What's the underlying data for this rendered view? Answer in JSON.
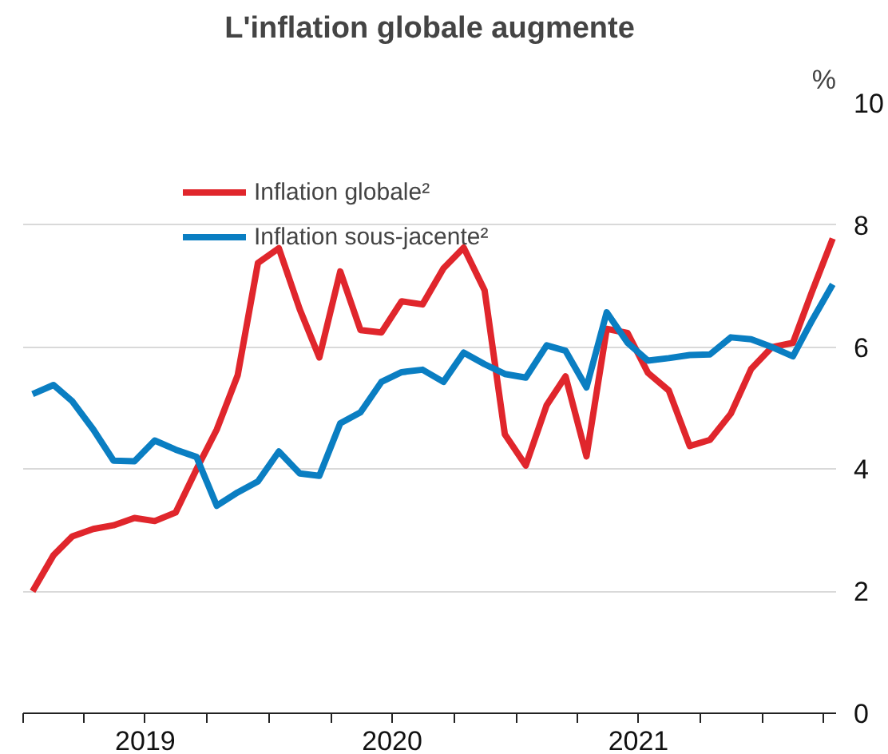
{
  "chart_data": {
    "type": "line",
    "title": "L'inflation globale augmente",
    "ylabel": "%",
    "x": [
      "2019-01-15",
      "2019-02-15",
      "2019-03-15",
      "2019-04-15",
      "2019-05-15",
      "2019-06-15",
      "2019-07-15",
      "2019-08-15",
      "2019-09-15",
      "2019-10-15",
      "2019-11-15",
      "2019-12-15",
      "2020-01-15",
      "2020-02-15",
      "2020-03-15",
      "2020-04-15",
      "2020-05-15",
      "2020-06-15",
      "2020-07-15",
      "2020-08-15",
      "2020-09-15",
      "2020-10-15",
      "2020-11-15",
      "2020-12-15",
      "2021-01-15",
      "2021-02-15",
      "2021-03-15",
      "2021-04-15",
      "2021-05-15",
      "2021-06-15",
      "2021-07-15",
      "2021-08-15",
      "2021-09-15",
      "2021-10-15",
      "2021-11-15",
      "2021-12-15",
      "2022-01-15",
      "2022-02-15",
      "2022-03-15",
      "2022-04-15"
    ],
    "series": [
      {
        "name": "Inflation globale²",
        "color": "#e0262c",
        "values": [
          2.0,
          2.59,
          2.9,
          3.02,
          3.08,
          3.2,
          3.15,
          3.29,
          4.0,
          4.65,
          5.54,
          7.38,
          7.62,
          6.62,
          5.83,
          7.24,
          6.28,
          6.24,
          6.75,
          6.7,
          7.29,
          7.63,
          6.93,
          4.57,
          4.06,
          5.05,
          5.52,
          4.21,
          6.3,
          6.23,
          5.58,
          5.29,
          4.38,
          4.48,
          4.91,
          5.64,
          6.0,
          6.07,
          6.9,
          7.78
        ]
      },
      {
        "name": "Inflation sous-jacente²",
        "color": "#0a7ec2",
        "values": [
          5.23,
          5.38,
          5.11,
          4.65,
          4.14,
          4.13,
          4.47,
          4.32,
          4.2,
          3.4,
          3.62,
          3.8,
          4.29,
          3.93,
          3.89,
          4.75,
          4.93,
          5.43,
          5.59,
          5.63,
          5.43,
          5.91,
          5.72,
          5.56,
          5.5,
          6.03,
          5.94,
          5.34,
          6.57,
          6.07,
          5.78,
          5.82,
          5.87,
          5.88,
          6.16,
          6.13,
          6.0,
          5.85,
          6.43,
          7.03
        ]
      }
    ],
    "xlim": [
      "2019-01-01",
      "2022-04-20"
    ],
    "xticks": [
      {
        "value": "2019-01-01",
        "label": null
      },
      {
        "value": "2019-04-01",
        "label": null
      },
      {
        "value": "2019-07-01",
        "label": "2019"
      },
      {
        "value": "2019-10-01",
        "label": null
      },
      {
        "value": "2020-01-01",
        "label": null
      },
      {
        "value": "2020-04-01",
        "label": null
      },
      {
        "value": "2020-07-01",
        "label": "2020"
      },
      {
        "value": "2020-10-01",
        "label": null
      },
      {
        "value": "2021-01-01",
        "label": null
      },
      {
        "value": "2021-04-01",
        "label": null
      },
      {
        "value": "2021-07-01",
        "label": "2021"
      },
      {
        "value": "2021-10-01",
        "label": null
      },
      {
        "value": "2022-01-01",
        "label": null
      },
      {
        "value": "2022-04-01",
        "label": null
      }
    ],
    "ylim": [
      0,
      10
    ],
    "yticks": [
      0,
      2,
      4,
      6,
      8,
      10
    ],
    "grid": "y",
    "legend": "top left",
    "marker": "none",
    "line_style": "solid"
  }
}
